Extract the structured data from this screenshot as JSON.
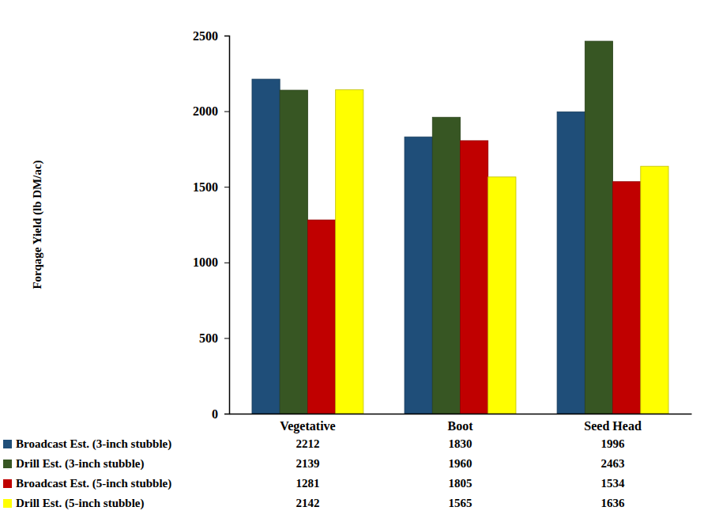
{
  "chart_data": {
    "type": "bar",
    "y_label": "Forqage Yield (lb DM/ac)",
    "categories": [
      "Vegetative",
      "Boot",
      "Seed Head"
    ],
    "series": [
      {
        "name": "Broadcast  Est. (3-inch stubble)",
        "color": "#1f4e79",
        "values": [
          2212,
          1830,
          1996
        ]
      },
      {
        "name": "Drill Est. (3-inch stubble)",
        "color": "#375623",
        "values": [
          2139,
          1960,
          2463
        ]
      },
      {
        "name": "Broadcast Est. (5-inch stubble)",
        "color": "#c00000",
        "values": [
          1281,
          1805,
          1534
        ]
      },
      {
        "name": "Drill Est. (5-inch stubble)",
        "color": "#ffff00",
        "values": [
          2142,
          1565,
          1636
        ]
      }
    ],
    "ylim": [
      0,
      2500
    ],
    "yticks": [
      0,
      500,
      1000,
      1500,
      2000,
      2500
    ],
    "grid": false
  }
}
